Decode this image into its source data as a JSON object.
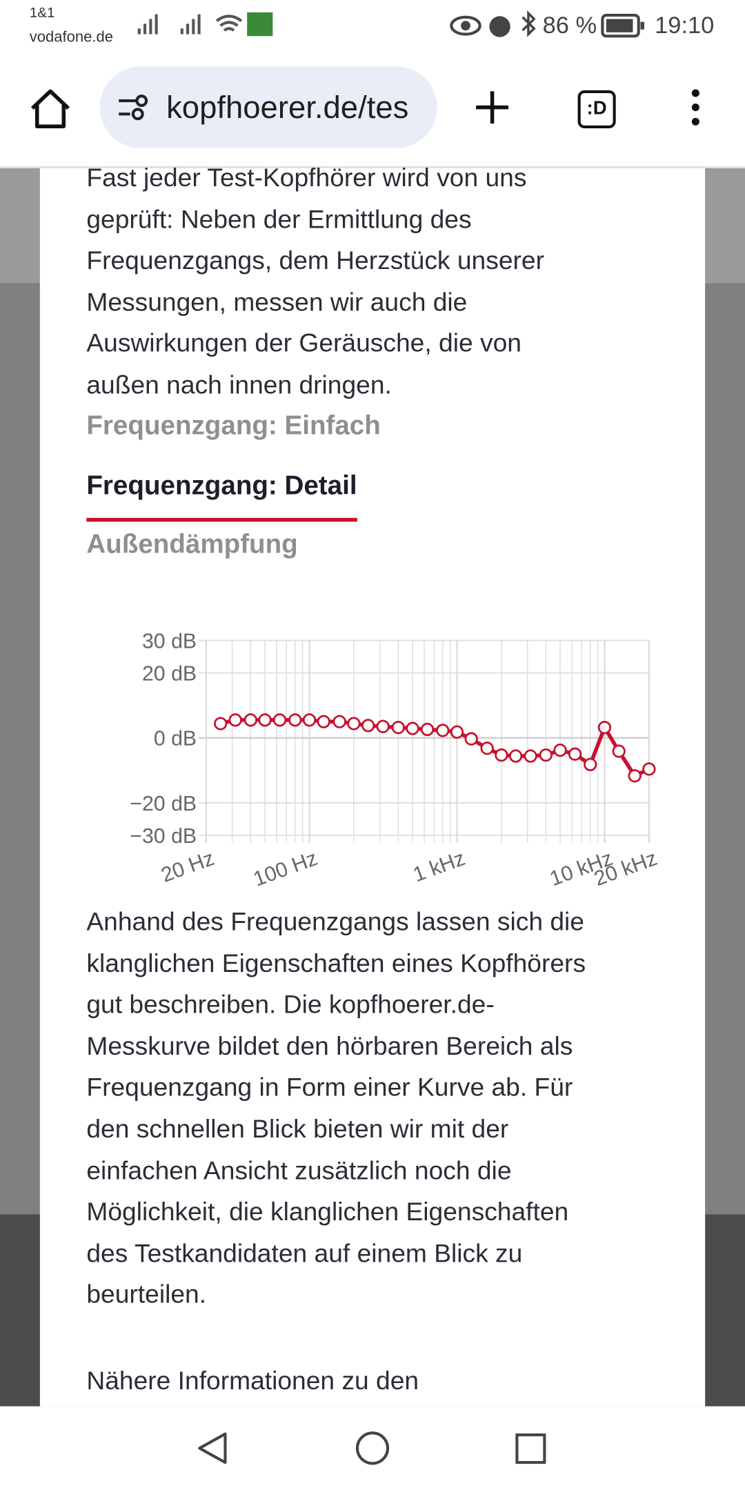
{
  "status_bar": {
    "carrier": "1&1",
    "network": "vodafone.de",
    "battery": "86 %",
    "time": "19:10"
  },
  "browser": {
    "url": "kopfhoerer.de/tes",
    "tab_label": ":D"
  },
  "intro": {
    "lines": [
      "Fast jeder Test-Kopfhörer wird von uns",
      "geprüft: Neben der Ermittlung des",
      "Frequenzgangs, dem Herzstück unserer",
      "Messungen, messen wir auch die",
      "Auswirkungen der Geräusche, die von",
      "außen nach innen dringen."
    ]
  },
  "tabs": {
    "items": [
      "Frequenzgang: Einfach",
      "Frequenzgang: Detail",
      "Außendämpfung"
    ],
    "active": 1
  },
  "chart_data": {
    "type": "line",
    "x_scale": "log",
    "grid": true,
    "xlim": [
      20,
      20000
    ],
    "ylim": [
      -30,
      30
    ],
    "xticks": [
      {
        "value": 20,
        "label": "20 Hz"
      },
      {
        "value": 100,
        "label": "100 Hz"
      },
      {
        "value": 1000,
        "label": "1 kHz"
      },
      {
        "value": 10000,
        "label": "10 kHz"
      },
      {
        "value": 20000,
        "label": "20 kHz"
      }
    ],
    "yticks": [
      {
        "value": 30,
        "label": "30 dB"
      },
      {
        "value": 20,
        "label": "20 dB"
      },
      {
        "value": 0,
        "label": "0 dB"
      },
      {
        "value": -20,
        "label": "−20 dB"
      },
      {
        "value": -30,
        "label": "−30 dB"
      }
    ],
    "x": [
      25,
      31.5,
      40,
      50,
      63,
      80,
      100,
      125,
      160,
      200,
      250,
      315,
      400,
      500,
      630,
      800,
      1000,
      1250,
      1600,
      2000,
      2500,
      3150,
      4000,
      5000,
      6300,
      8000,
      10000,
      12500,
      16000,
      20000
    ],
    "series": [
      {
        "color": "#c8102e",
        "values": [
          4.4,
          5.5,
          5.5,
          5.5,
          5.5,
          5.5,
          5.5,
          5,
          5,
          4.4,
          3.8,
          3.5,
          3.2,
          2.9,
          2.6,
          2.3,
          1.8,
          -0.3,
          -3.2,
          -5.3,
          -5.6,
          -5.6,
          -5.3,
          -3.8,
          -5,
          -8.2,
          3.2,
          -4.1,
          -11.7,
          -9.6
        ]
      }
    ]
  },
  "body": {
    "lines": [
      "Anhand des Frequenzgangs lassen sich die",
      "klanglichen Eigenschaften eines Kopfhörers",
      "gut beschreiben. Die kopfhoerer.de-",
      "Messkurve bildet den hörbaren Bereich als",
      "Frequenzgang in Form einer Kurve ab. Für",
      "den schnellen Blick bieten wir mit der",
      "einfachen Ansicht zusätzlich noch die",
      "Möglichkeit, die klanglichen Eigenschaften",
      "des Testkandidaten auf einem Blick zu",
      "beurteilen."
    ]
  },
  "more": {
    "lines": [
      "Nähere Informationen zu den"
    ]
  }
}
